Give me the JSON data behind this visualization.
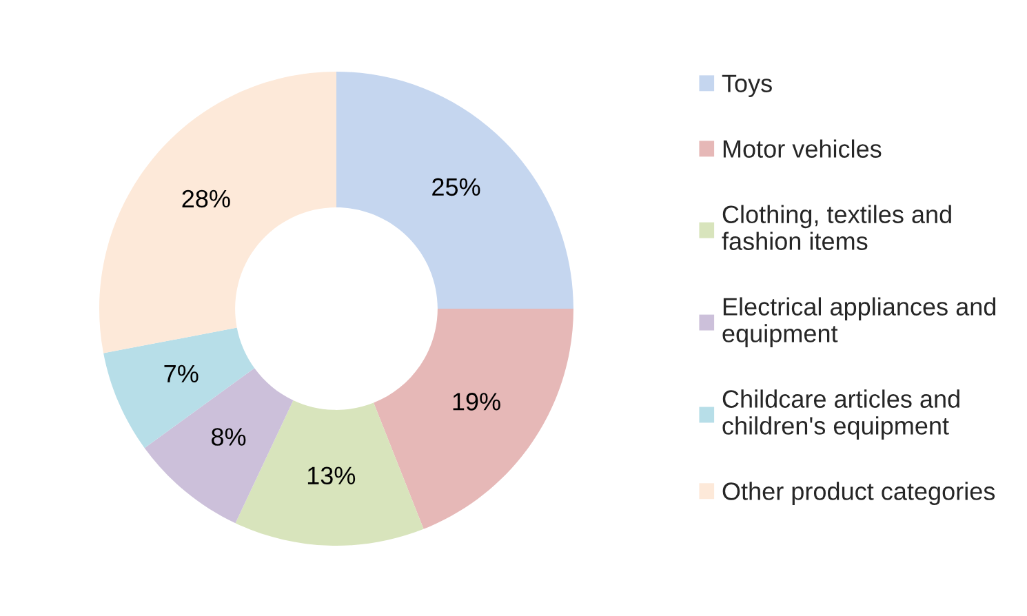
{
  "chart_data": {
    "type": "donut",
    "categories": [
      "Toys",
      "Motor vehicles",
      "Clothing, textiles and\nfashion items",
      "Electrical appliances and\nequipment",
      "Childcare articles and\nchildren's equipment",
      "Other product categories"
    ],
    "values": [
      25,
      19,
      13,
      8,
      7,
      28
    ],
    "colors": [
      "#c5d6ef",
      "#e6b8b7",
      "#d8e4bc",
      "#ccc0da",
      "#b7dee8",
      "#fde9d9"
    ],
    "value_labels": [
      "25%",
      "19%",
      "13%",
      "8%",
      "7%",
      "28%"
    ],
    "legend": "right"
  }
}
